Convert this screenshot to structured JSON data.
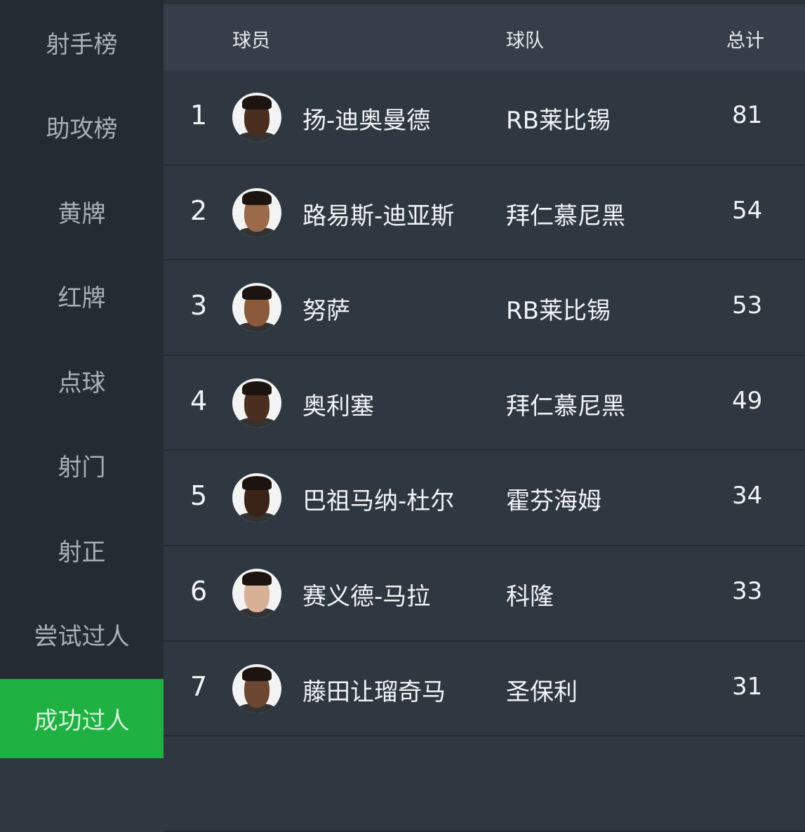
{
  "sidebar": {
    "items": [
      {
        "label": "射手榜"
      },
      {
        "label": "助攻榜"
      },
      {
        "label": "黄牌"
      },
      {
        "label": "红牌"
      },
      {
        "label": "点球"
      },
      {
        "label": "射门"
      },
      {
        "label": "射正"
      },
      {
        "label": "尝试过人"
      },
      {
        "label": "成功过人",
        "active": true
      }
    ]
  },
  "colors": {
    "accent": "#1fb141",
    "sidebar_bg": "#252b33",
    "header_bg": "#363f49",
    "row_bg": "#2f3740"
  },
  "table": {
    "headers": {
      "player": "球员",
      "team": "球队",
      "total": "总计"
    },
    "rows": [
      {
        "rank": "1",
        "name": "扬-迪奥曼德",
        "team": "RB莱比锡",
        "total": "81",
        "skin": "#4a2e20"
      },
      {
        "rank": "2",
        "name": "路易斯-迪亚斯",
        "team": "拜仁慕尼黑",
        "total": "54",
        "skin": "#9a6a4a"
      },
      {
        "rank": "3",
        "name": "努萨",
        "team": "RB莱比锡",
        "total": "53",
        "skin": "#8a5a3a"
      },
      {
        "rank": "4",
        "name": "奥利塞",
        "team": "拜仁慕尼黑",
        "total": "49",
        "skin": "#4a2e20"
      },
      {
        "rank": "5",
        "name": "巴祖马纳-杜尔",
        "team": "霍芬海姆",
        "total": "34",
        "skin": "#3a2418"
      },
      {
        "rank": "6",
        "name": "赛义德-马拉",
        "team": "科隆",
        "total": "33",
        "skin": "#d8b098"
      },
      {
        "rank": "7",
        "name": "藤田让瑠奇马",
        "team": "圣保利",
        "total": "31",
        "skin": "#6b4630"
      }
    ]
  }
}
